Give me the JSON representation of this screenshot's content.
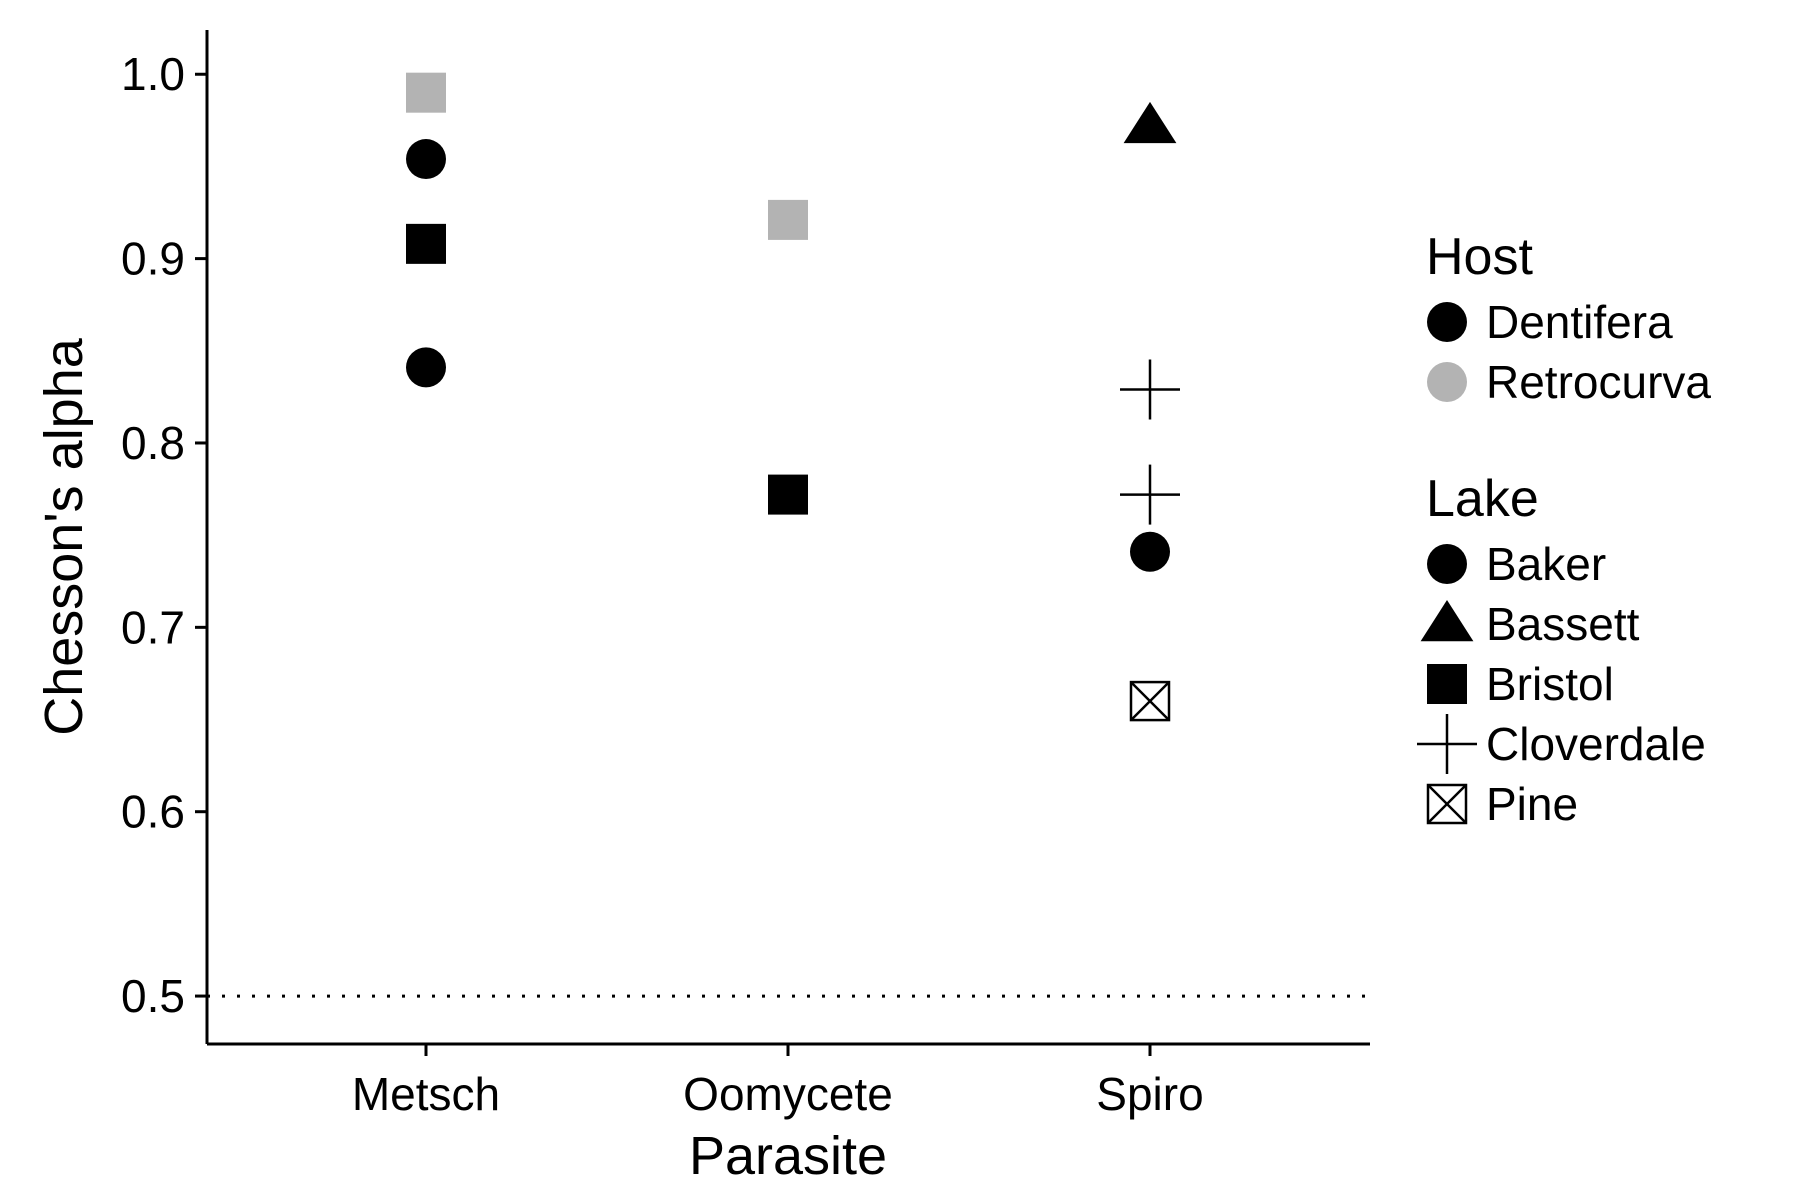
{
  "chart_data": {
    "type": "scatter",
    "xlabel": "Parasite",
    "ylabel": "Chesson's alpha",
    "categories": [
      "Metsch",
      "Oomycete",
      "Spiro"
    ],
    "ylim": [
      0.474,
      1.024
    ],
    "yticks": [
      0.5,
      0.6,
      0.7,
      0.8,
      0.9,
      1.0
    ],
    "ytick_labels": [
      "0.5",
      "0.6",
      "0.7",
      "0.8",
      "0.9",
      "1.0"
    ],
    "reference_line": {
      "y": 0.5,
      "style": "dotted"
    },
    "grid": false,
    "legend_position": "right",
    "colors": {
      "Dentifera": "#000000",
      "Retrocurva": "#b3b3b3"
    },
    "points": [
      {
        "parasite": "Metsch",
        "value": 0.99,
        "host": "Retrocurva",
        "lake": "Bristol"
      },
      {
        "parasite": "Metsch",
        "value": 0.954,
        "host": "Dentifera",
        "lake": "Baker"
      },
      {
        "parasite": "Metsch",
        "value": 0.908,
        "host": "Dentifera",
        "lake": "Bristol"
      },
      {
        "parasite": "Metsch",
        "value": 0.841,
        "host": "Dentifera",
        "lake": "Baker"
      },
      {
        "parasite": "Oomycete",
        "value": 0.921,
        "host": "Retrocurva",
        "lake": "Bristol"
      },
      {
        "parasite": "Oomycete",
        "value": 0.772,
        "host": "Dentifera",
        "lake": "Bristol"
      },
      {
        "parasite": "Spiro",
        "value": 0.972,
        "host": "Dentifera",
        "lake": "Bassett"
      },
      {
        "parasite": "Spiro",
        "value": 0.829,
        "host": "Dentifera",
        "lake": "Cloverdale"
      },
      {
        "parasite": "Spiro",
        "value": 0.772,
        "host": "Dentifera",
        "lake": "Cloverdale"
      },
      {
        "parasite": "Spiro",
        "value": 0.741,
        "host": "Dentifera",
        "lake": "Baker"
      },
      {
        "parasite": "Spiro",
        "value": 0.66,
        "host": "Dentifera",
        "lake": "Pine"
      }
    ],
    "legend": {
      "host": {
        "title": "Host",
        "items": [
          {
            "label": "Dentifera",
            "shape": "circle",
            "color": "#000000"
          },
          {
            "label": "Retrocurva",
            "shape": "circle",
            "color": "#b3b3b3"
          }
        ]
      },
      "lake": {
        "title": "Lake",
        "items": [
          {
            "label": "Baker",
            "shape": "circle"
          },
          {
            "label": "Bassett",
            "shape": "triangle"
          },
          {
            "label": "Bristol",
            "shape": "square"
          },
          {
            "label": "Cloverdale",
            "shape": "plus"
          },
          {
            "label": "Pine",
            "shape": "boxx"
          }
        ]
      }
    }
  }
}
